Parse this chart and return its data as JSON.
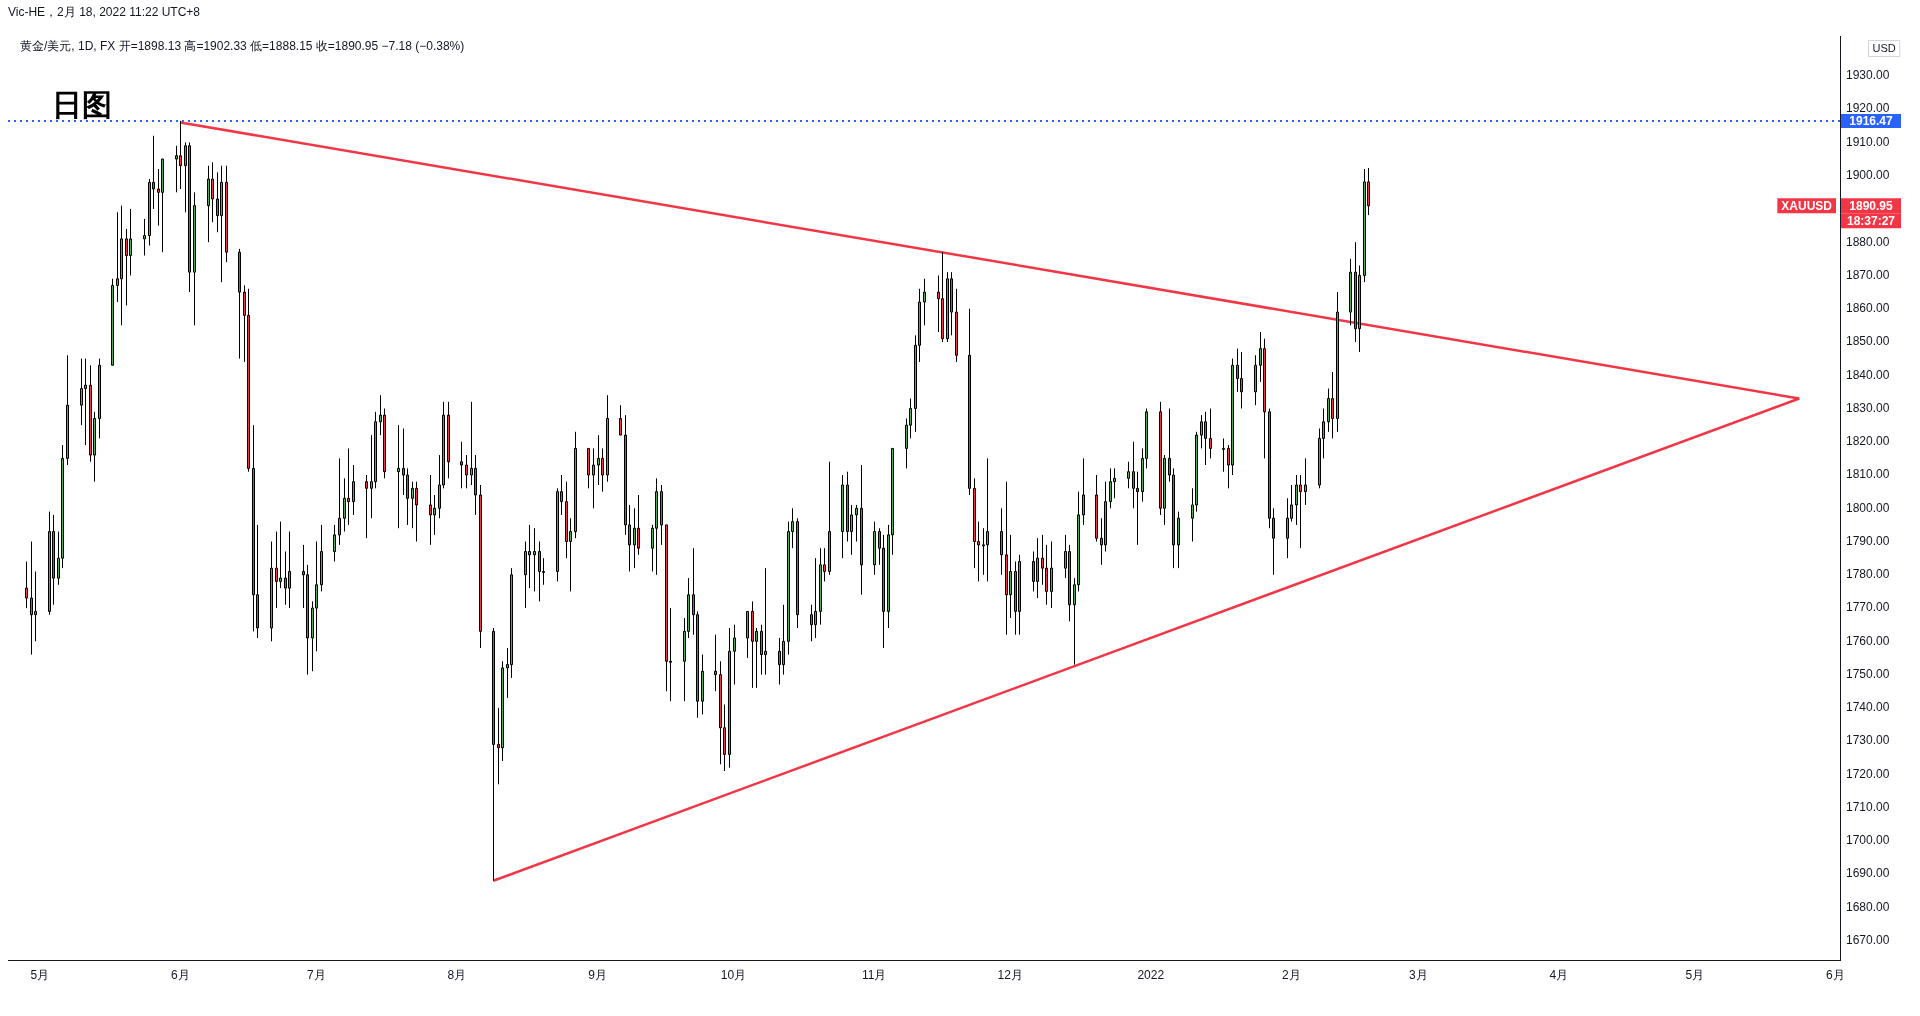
{
  "chart_data": {
    "type": "candlestick",
    "title": "黄金/美元, 1D, FX  开=1898.13  高=1902.33  低=1888.15  收=1890.95  −7.18 (−0.38%)",
    "subtitle": "Vic-HE，2月 18, 2022 11:22 UTC+8",
    "ylabel": "USD",
    "x": [
      "2021-04-28",
      "2021-04-29",
      "2021-04-30",
      "2021-05-03",
      "2021-05-04",
      "2021-05-05",
      "2021-05-06",
      "2021-05-07",
      "2021-05-10",
      "2021-05-11",
      "2021-05-12",
      "2021-05-13",
      "2021-05-14",
      "2021-05-17",
      "2021-05-18",
      "2021-05-19",
      "2021-05-20",
      "2021-05-21",
      "2021-05-24",
      "2021-05-25",
      "2021-05-26",
      "2021-05-27",
      "2021-05-28",
      "2021-05-31",
      "2021-06-01",
      "2021-06-02",
      "2021-06-03",
      "2021-06-04",
      "2021-06-07",
      "2021-06-08",
      "2021-06-09",
      "2021-06-10",
      "2021-06-11",
      "2021-06-14",
      "2021-06-15",
      "2021-06-16",
      "2021-06-17",
      "2021-06-18",
      "2021-06-21",
      "2021-06-22",
      "2021-06-23",
      "2021-06-24",
      "2021-06-25",
      "2021-06-28",
      "2021-06-29",
      "2021-06-30",
      "2021-07-01",
      "2021-07-02",
      "2021-07-05",
      "2021-07-06",
      "2021-07-07",
      "2021-07-08",
      "2021-07-09",
      "2021-07-12",
      "2021-07-13",
      "2021-07-14",
      "2021-07-15",
      "2021-07-16",
      "2021-07-19",
      "2021-07-20",
      "2021-07-21",
      "2021-07-22",
      "2021-07-23",
      "2021-07-26",
      "2021-07-27",
      "2021-07-28",
      "2021-07-29",
      "2021-07-30",
      "2021-08-02",
      "2021-08-03",
      "2021-08-04",
      "2021-08-05",
      "2021-08-06",
      "2021-08-09",
      "2021-08-10",
      "2021-08-11",
      "2021-08-12",
      "2021-08-13",
      "2021-08-16",
      "2021-08-17",
      "2021-08-18",
      "2021-08-19",
      "2021-08-20",
      "2021-08-23",
      "2021-08-24",
      "2021-08-25",
      "2021-08-26",
      "2021-08-27",
      "2021-08-30",
      "2021-08-31",
      "2021-09-01",
      "2021-09-02",
      "2021-09-03",
      "2021-09-06",
      "2021-09-07",
      "2021-09-08",
      "2021-09-09",
      "2021-09-10",
      "2021-09-13",
      "2021-09-14",
      "2021-09-15",
      "2021-09-16",
      "2021-09-17",
      "2021-09-20",
      "2021-09-21",
      "2021-09-22",
      "2021-09-23",
      "2021-09-24",
      "2021-09-27",
      "2021-09-28",
      "2021-09-29",
      "2021-09-30",
      "2021-10-01",
      "2021-10-04",
      "2021-10-05",
      "2021-10-06",
      "2021-10-07",
      "2021-10-08",
      "2021-10-11",
      "2021-10-12",
      "2021-10-13",
      "2021-10-14",
      "2021-10-15",
      "2021-10-18",
      "2021-10-19",
      "2021-10-20",
      "2021-10-21",
      "2021-10-22",
      "2021-10-25",
      "2021-10-26",
      "2021-10-27",
      "2021-10-28",
      "2021-10-29",
      "2021-11-01",
      "2021-11-02",
      "2021-11-03",
      "2021-11-04",
      "2021-11-05",
      "2021-11-08",
      "2021-11-09",
      "2021-11-10",
      "2021-11-11",
      "2021-11-12",
      "2021-11-15",
      "2021-11-16",
      "2021-11-17",
      "2021-11-18",
      "2021-11-19",
      "2021-11-22",
      "2021-11-23",
      "2021-11-24",
      "2021-11-25",
      "2021-11-26",
      "2021-11-29",
      "2021-11-30",
      "2021-12-01",
      "2021-12-02",
      "2021-12-03",
      "2021-12-06",
      "2021-12-07",
      "2021-12-08",
      "2021-12-09",
      "2021-12-10",
      "2021-12-13",
      "2021-12-14",
      "2021-12-15",
      "2021-12-16",
      "2021-12-17",
      "2021-12-20",
      "2021-12-21",
      "2021-12-22",
      "2021-12-23",
      "2021-12-24",
      "2021-12-27",
      "2021-12-28",
      "2021-12-29",
      "2021-12-30",
      "2021-12-31",
      "2022-01-03",
      "2022-01-04",
      "2022-01-05",
      "2022-01-06",
      "2022-01-07",
      "2022-01-10",
      "2022-01-11",
      "2022-01-12",
      "2022-01-13",
      "2022-01-14",
      "2022-01-17",
      "2022-01-18",
      "2022-01-19",
      "2022-01-20",
      "2022-01-21",
      "2022-01-24",
      "2022-01-25",
      "2022-01-26",
      "2022-01-27",
      "2022-01-28",
      "2022-01-31",
      "2022-02-01",
      "2022-02-02",
      "2022-02-03",
      "2022-02-04",
      "2022-02-07",
      "2022-02-08",
      "2022-02-09",
      "2022-02-10",
      "2022-02-11",
      "2022-02-14",
      "2022-02-15",
      "2022-02-16",
      "2022-02-17",
      "2022-02-18"
    ],
    "ohlc": [
      [
        1776,
        1784,
        1770,
        1773
      ],
      [
        1773,
        1790,
        1756,
        1768
      ],
      [
        1768,
        1781,
        1760,
        1769
      ],
      [
        1769,
        1799,
        1768,
        1793
      ],
      [
        1793,
        1798,
        1771,
        1779
      ],
      [
        1779,
        1793,
        1777,
        1785
      ],
      [
        1785,
        1819,
        1782,
        1815
      ],
      [
        1815,
        1846,
        1813,
        1831
      ],
      [
        1831,
        1845,
        1825,
        1836
      ],
      [
        1836,
        1845,
        1819,
        1837
      ],
      [
        1837,
        1843,
        1814,
        1816
      ],
      [
        1816,
        1829,
        1808,
        1827
      ],
      [
        1827,
        1845,
        1821,
        1843
      ],
      [
        1843,
        1869,
        1843,
        1867
      ],
      [
        1867,
        1889,
        1862,
        1869
      ],
      [
        1869,
        1891,
        1855,
        1881
      ],
      [
        1881,
        1884,
        1861,
        1876
      ],
      [
        1876,
        1890,
        1870,
        1881
      ],
      [
        1881,
        1887,
        1876,
        1882
      ],
      [
        1882,
        1899,
        1879,
        1898
      ],
      [
        1898,
        1912,
        1890,
        1896
      ],
      [
        1896,
        1902,
        1885,
        1895
      ],
      [
        1895,
        1905,
        1877,
        1905
      ],
      [
        1905,
        1909,
        1895,
        1906
      ],
      [
        1906,
        1916.47,
        1896,
        1903
      ],
      [
        1903,
        1910,
        1889,
        1909
      ],
      [
        1909,
        1910,
        1865,
        1871
      ],
      [
        1871,
        1895,
        1855,
        1891
      ],
      [
        1891,
        1903,
        1880,
        1899
      ],
      [
        1899,
        1904,
        1886,
        1893
      ],
      [
        1893,
        1901,
        1883,
        1888
      ],
      [
        1888,
        1903,
        1868,
        1898
      ],
      [
        1898,
        1903,
        1874,
        1877
      ],
      [
        1877,
        1878,
        1845,
        1865
      ],
      [
        1865,
        1867,
        1844,
        1858
      ],
      [
        1858,
        1866,
        1811,
        1812
      ],
      [
        1812,
        1825,
        1763,
        1774
      ],
      [
        1774,
        1795,
        1761,
        1764
      ],
      [
        1764,
        1790,
        1760,
        1782
      ],
      [
        1782,
        1793,
        1770,
        1778
      ],
      [
        1778,
        1796,
        1776,
        1779
      ],
      [
        1779,
        1787,
        1771,
        1776
      ],
      [
        1776,
        1793,
        1770,
        1781
      ],
      [
        1781,
        1789,
        1770,
        1780
      ],
      [
        1780,
        1783,
        1750,
        1761
      ],
      [
        1761,
        1772,
        1751,
        1770
      ],
      [
        1770,
        1790,
        1757,
        1777
      ],
      [
        1777,
        1795,
        1775,
        1787
      ],
      [
        1787,
        1795,
        1784,
        1792
      ],
      [
        1792,
        1815,
        1789,
        1797
      ],
      [
        1797,
        1809,
        1793,
        1803
      ],
      [
        1803,
        1818,
        1795,
        1802
      ],
      [
        1802,
        1813,
        1798,
        1808
      ],
      [
        1808,
        1810,
        1791,
        1806
      ],
      [
        1806,
        1822,
        1797,
        1808
      ],
      [
        1808,
        1829,
        1806,
        1826
      ],
      [
        1826,
        1834,
        1822,
        1828
      ],
      [
        1828,
        1830,
        1809,
        1811
      ],
      [
        1811,
        1825,
        1794,
        1812
      ],
      [
        1812,
        1824,
        1804,
        1810
      ],
      [
        1810,
        1812,
        1795,
        1803
      ],
      [
        1803,
        1808,
        1794,
        1806
      ],
      [
        1806,
        1808,
        1790,
        1801
      ],
      [
        1801,
        1810,
        1789,
        1798
      ],
      [
        1798,
        1804,
        1792,
        1800
      ],
      [
        1800,
        1816,
        1797,
        1807
      ],
      [
        1807,
        1832,
        1806,
        1828
      ],
      [
        1828,
        1832,
        1809,
        1814
      ],
      [
        1814,
        1820,
        1806,
        1813
      ],
      [
        1813,
        1816,
        1806,
        1810
      ],
      [
        1810,
        1832,
        1807,
        1812
      ],
      [
        1812,
        1816,
        1798,
        1804
      ],
      [
        1804,
        1807,
        1758,
        1763
      ],
      [
        1763,
        1764,
        1688,
        1729
      ],
      [
        1729,
        1740,
        1717,
        1728
      ],
      [
        1728,
        1754,
        1724,
        1752
      ],
      [
        1752,
        1758,
        1743,
        1753
      ],
      [
        1753,
        1782,
        1749,
        1780
      ],
      [
        1780,
        1790,
        1770,
        1787
      ],
      [
        1787,
        1795,
        1776,
        1786
      ],
      [
        1786,
        1794,
        1775,
        1787
      ],
      [
        1787,
        1790,
        1772,
        1781
      ],
      [
        1781,
        1785,
        1777,
        1781
      ],
      [
        1781,
        1806,
        1778,
        1805
      ],
      [
        1805,
        1810,
        1798,
        1802
      ],
      [
        1802,
        1808,
        1785,
        1790
      ],
      [
        1790,
        1797,
        1775,
        1793
      ],
      [
        1793,
        1823,
        1791,
        1818
      ],
      [
        1818,
        1818,
        1806,
        1810
      ],
      [
        1810,
        1818,
        1800,
        1813
      ],
      [
        1813,
        1822,
        1807,
        1815
      ],
      [
        1815,
        1818,
        1805,
        1810
      ],
      [
        1810,
        1834,
        1808,
        1827
      ],
      [
        1827,
        1831,
        1822,
        1822
      ],
      [
        1822,
        1828,
        1792,
        1795
      ],
      [
        1795,
        1801,
        1781,
        1789
      ],
      [
        1789,
        1800,
        1782,
        1794
      ],
      [
        1794,
        1804,
        1786,
        1788
      ],
      [
        1788,
        1795,
        1781,
        1794
      ],
      [
        1794,
        1809,
        1780,
        1805
      ],
      [
        1805,
        1807,
        1789,
        1795
      ],
      [
        1795,
        1795,
        1745,
        1754
      ],
      [
        1754,
        1770,
        1742,
        1754
      ],
      [
        1754,
        1767,
        1742,
        1763
      ],
      [
        1763,
        1779,
        1761,
        1774
      ],
      [
        1774,
        1788,
        1762,
        1768
      ],
      [
        1768,
        1769,
        1737,
        1742
      ],
      [
        1742,
        1756,
        1738,
        1751
      ],
      [
        1751,
        1762,
        1745,
        1750
      ],
      [
        1750,
        1754,
        1723,
        1734
      ],
      [
        1734,
        1741,
        1721,
        1726
      ],
      [
        1726,
        1764,
        1722,
        1757
      ],
      [
        1757,
        1765,
        1747,
        1761
      ],
      [
        1761,
        1769,
        1755,
        1769
      ],
      [
        1769,
        1772,
        1746,
        1760
      ],
      [
        1760,
        1764,
        1746,
        1763
      ],
      [
        1763,
        1765,
        1750,
        1756
      ],
      [
        1756,
        1782,
        1750,
        1757
      ],
      [
        1757,
        1761,
        1747,
        1753
      ],
      [
        1753,
        1771,
        1750,
        1760
      ],
      [
        1760,
        1796,
        1756,
        1793
      ],
      [
        1793,
        1800,
        1788,
        1796
      ],
      [
        1796,
        1797,
        1764,
        1768
      ],
      [
        1768,
        1771,
        1760,
        1765
      ],
      [
        1765,
        1785,
        1761,
        1769
      ],
      [
        1769,
        1788,
        1765,
        1783
      ],
      [
        1783,
        1788,
        1778,
        1781
      ],
      [
        1781,
        1814,
        1780,
        1793
      ],
      [
        1793,
        1810,
        1785,
        1807
      ],
      [
        1807,
        1811,
        1790,
        1793
      ],
      [
        1793,
        1801,
        1786,
        1798
      ],
      [
        1798,
        1801,
        1790,
        1800
      ],
      [
        1800,
        1813,
        1774,
        1783
      ],
      [
        1783,
        1796,
        1780,
        1793
      ],
      [
        1793,
        1794,
        1783,
        1788
      ],
      [
        1788,
        1792,
        1758,
        1769
      ],
      [
        1769,
        1795,
        1764,
        1792
      ],
      [
        1792,
        1818,
        1786,
        1818
      ],
      [
        1818,
        1827,
        1812,
        1825
      ],
      [
        1825,
        1833,
        1821,
        1830
      ],
      [
        1830,
        1852,
        1823,
        1849
      ],
      [
        1849,
        1866,
        1844,
        1862
      ],
      [
        1862,
        1869,
        1855,
        1865
      ],
      [
        1865,
        1870,
        1853,
        1863
      ],
      [
        1863,
        1877,
        1850,
        1851
      ],
      [
        1851,
        1871,
        1850,
        1869
      ],
      [
        1869,
        1871,
        1852,
        1859
      ],
      [
        1859,
        1866,
        1844,
        1846
      ],
      [
        1846,
        1860,
        1804,
        1806
      ],
      [
        1806,
        1809,
        1782,
        1790
      ],
      [
        1790,
        1796,
        1778,
        1789
      ],
      [
        1789,
        1794,
        1780,
        1789
      ],
      [
        1789,
        1815,
        1778,
        1793
      ],
      [
        1793,
        1800,
        1780,
        1786
      ],
      [
        1786,
        1808,
        1762,
        1774
      ],
      [
        1774,
        1792,
        1767,
        1781
      ],
      [
        1781,
        1784,
        1762,
        1769
      ],
      [
        1769,
        1786,
        1762,
        1784
      ],
      [
        1784,
        1787,
        1775,
        1778
      ],
      [
        1778,
        1791,
        1773,
        1785
      ],
      [
        1785,
        1792,
        1777,
        1782
      ],
      [
        1782,
        1789,
        1771,
        1775
      ],
      [
        1775,
        1790,
        1770,
        1782
      ],
      [
        1782,
        1792,
        1779,
        1787
      ],
      [
        1787,
        1789,
        1766,
        1771
      ],
      [
        1771,
        1779,
        1753,
        1777
      ],
      [
        1777,
        1805,
        1775,
        1798
      ],
      [
        1798,
        1815,
        1795,
        1804
      ],
      [
        1804,
        1810,
        1790,
        1791
      ],
      [
        1791,
        1797,
        1783,
        1789
      ],
      [
        1789,
        1808,
        1787,
        1802
      ],
      [
        1802,
        1812,
        1800,
        1808
      ],
      [
        1808,
        1812,
        1803,
        1809
      ],
      [
        1809,
        1814,
        1806,
        1811
      ],
      [
        1811,
        1820,
        1800,
        1806
      ],
      [
        1806,
        1811,
        1789,
        1805
      ],
      [
        1805,
        1818,
        1802,
        1815
      ],
      [
        1815,
        1830,
        1812,
        1829
      ],
      [
        1829,
        1832,
        1798,
        1800
      ],
      [
        1800,
        1816,
        1795,
        1815
      ],
      [
        1815,
        1830,
        1808,
        1810
      ],
      [
        1810,
        1812,
        1782,
        1789
      ],
      [
        1789,
        1799,
        1782,
        1797
      ],
      [
        1797,
        1806,
        1790,
        1801
      ],
      [
        1801,
        1823,
        1799,
        1822
      ],
      [
        1822,
        1828,
        1818,
        1826
      ],
      [
        1826,
        1829,
        1813,
        1821
      ],
      [
        1821,
        1830,
        1815,
        1818
      ],
      [
        1818,
        1821,
        1811,
        1818
      ],
      [
        1818,
        1819,
        1806,
        1813
      ],
      [
        1813,
        1845,
        1810,
        1843
      ],
      [
        1843,
        1848,
        1835,
        1839
      ],
      [
        1839,
        1847,
        1830,
        1835
      ],
      [
        1835,
        1846,
        1831,
        1843
      ],
      [
        1843,
        1853,
        1838,
        1848
      ],
      [
        1848,
        1851,
        1815,
        1829
      ],
      [
        1829,
        1830,
        1794,
        1797
      ],
      [
        1797,
        1800,
        1780,
        1791
      ],
      [
        1791,
        1803,
        1785,
        1797
      ],
      [
        1797,
        1807,
        1796,
        1801
      ],
      [
        1801,
        1810,
        1795,
        1807
      ],
      [
        1807,
        1810,
        1788,
        1805
      ],
      [
        1805,
        1815,
        1801,
        1807
      ],
      [
        1807,
        1824,
        1806,
        1821
      ],
      [
        1821,
        1830,
        1815,
        1826
      ],
      [
        1826,
        1836,
        1823,
        1833
      ],
      [
        1833,
        1841,
        1821,
        1827
      ],
      [
        1827,
        1865,
        1823,
        1859
      ],
      [
        1859,
        1875,
        1855,
        1871
      ],
      [
        1871,
        1880,
        1850,
        1854
      ],
      [
        1854,
        1873,
        1847,
        1870
      ],
      [
        1870,
        1902,
        1868,
        1898.13
      ],
      [
        1898.13,
        1902.33,
        1888.15,
        1890.95
      ]
    ],
    "colors": [
      "#f23645",
      "#f23645",
      "#4caf50",
      "#4caf50",
      "#f23645",
      "#4caf50",
      "#4caf50",
      "#4caf50",
      "#4caf50",
      "#4caf50",
      "#f23645",
      "#4caf50",
      "#4caf50",
      "#4caf50",
      "#4caf50",
      "#4caf50",
      "#f23645",
      "#4caf50",
      "#4caf50",
      "#4caf50",
      "#f23645",
      "#f23645",
      "#4caf50",
      "#4caf50",
      "#f23645",
      "#4caf50",
      "#f23645",
      "#4caf50",
      "#4caf50",
      "#f23645",
      "#f23645",
      "#4caf50",
      "#f23645",
      "#f23645",
      "#f23645",
      "#f23645",
      "#f23645",
      "#f23645",
      "#4caf50",
      "#f23645",
      "#4caf50",
      "#f23645",
      "#4caf50",
      "#f23645",
      "#f23645",
      "#4caf50",
      "#4caf50",
      "#4caf50",
      "#4caf50",
      "#4caf50",
      "#4caf50",
      "#f23645",
      "#4caf50",
      "#f23645",
      "#4caf50",
      "#4caf50",
      "#4caf50",
      "#f23645",
      "#4caf50",
      "#f23645",
      "#f23645",
      "#4caf50",
      "#f23645",
      "#f23645",
      "#4caf50",
      "#4caf50",
      "#4caf50",
      "#f23645",
      "#f23645",
      "#f23645",
      "#4caf50",
      "#f23645",
      "#f23645",
      "#f23645",
      "#f23645",
      "#4caf50",
      "#4caf50",
      "#4caf50",
      "#4caf50",
      "#f23645",
      "#4caf50",
      "#f23645",
      "#4caf50",
      "#4caf50",
      "#f23645",
      "#f23645",
      "#4caf50",
      "#4caf50",
      "#f23645",
      "#4caf50",
      "#4caf50",
      "#f23645",
      "#4caf50",
      "#f23645",
      "#f23645",
      "#f23645",
      "#4caf50",
      "#f23645",
      "#4caf50",
      "#4caf50",
      "#f23645",
      "#f23645",
      "#4caf50",
      "#4caf50",
      "#4caf50",
      "#f23645",
      "#f23645",
      "#4caf50",
      "#f23645",
      "#f23645",
      "#f23645",
      "#4caf50",
      "#4caf50",
      "#4caf50",
      "#f23645",
      "#4caf50",
      "#f23645",
      "#4caf50",
      "#f23645",
      "#4caf50",
      "#4caf50",
      "#4caf50",
      "#f23645",
      "#f23645",
      "#4caf50",
      "#4caf50",
      "#f23645",
      "#4caf50",
      "#4caf50",
      "#f23645",
      "#4caf50",
      "#4caf50",
      "#f23645",
      "#4caf50",
      "#f23645",
      "#f23645",
      "#4caf50",
      "#4caf50",
      "#4caf50",
      "#4caf50",
      "#4caf50",
      "#4caf50",
      "#4caf50",
      "#f23645",
      "#f23645",
      "#4caf50",
      "#f23645",
      "#f23645",
      "#f23645",
      "#f23645",
      "#f23645",
      "#4caf50",
      "#4caf50",
      "#f23645",
      "#f23645",
      "#4caf50",
      "#f23645",
      "#4caf50",
      "#f23645",
      "#4caf50",
      "#f23645",
      "#f23645",
      "#4caf50",
      "#4caf50",
      "#f23645",
      "#4caf50",
      "#4caf50",
      "#4caf50",
      "#f23645",
      "#f23645",
      "#4caf50",
      "#4caf50",
      "#4caf50",
      "#4caf50",
      "#f23645",
      "#f23645",
      "#4caf50",
      "#4caf50",
      "#f23645",
      "#4caf50",
      "#f23645",
      "#f23645",
      "#4caf50",
      "#4caf50",
      "#4caf50",
      "#4caf50",
      "#f23645",
      "#f23645",
      "#4caf50",
      "#f23645",
      "#4caf50",
      "#f23645",
      "#f23645",
      "#4caf50",
      "#4caf50",
      "#f23645",
      "#f23645",
      "#f23645",
      "#4caf50",
      "#4caf50",
      "#4caf50",
      "#f23645",
      "#4caf50",
      "#4caf50",
      "#4caf50",
      "#4caf50",
      "#f23645",
      "#4caf50",
      "#4caf50",
      "#f23645",
      "#4caf50",
      "#4caf50",
      "#f23645"
    ],
    "series": [
      {
        "type": "line",
        "color": "#f23645",
        "x": [
          "2021-06-01",
          "2022-05-24"
        ],
        "values": [
          1916,
          1833
        ]
      },
      {
        "type": "line",
        "color": "#f23645",
        "x": [
          "2021-08-09",
          "2022-05-24"
        ],
        "values": [
          1688,
          1833
        ]
      }
    ],
    "ref_lines": [
      {
        "axis": "y",
        "value": 1916.47,
        "label": "1916.47",
        "color": "#2962ff",
        "line_style": "dotted"
      }
    ],
    "annotations": [
      "日图",
      "XAUUSD",
      "1890.95",
      "18:37:27"
    ],
    "xlim": [
      "2021-04-24",
      "2022-06-02"
    ],
    "xticks": [
      {
        "value": "2021-05-01",
        "label": "5月"
      },
      {
        "value": "2021-06-01",
        "label": "6月"
      },
      {
        "value": "2021-07-01",
        "label": "7月"
      },
      {
        "value": "2021-08-01",
        "label": "8月"
      },
      {
        "value": "2021-09-01",
        "label": "9月"
      },
      {
        "value": "2021-10-01",
        "label": "10月"
      },
      {
        "value": "2021-11-01",
        "label": "11月"
      },
      {
        "value": "2021-12-01",
        "label": "12月"
      },
      {
        "value": "2022-01-01",
        "label": "2022"
      },
      {
        "value": "2022-02-01",
        "label": "2月"
      },
      {
        "value": "2022-03-01",
        "label": "3月"
      },
      {
        "value": "2022-04-01",
        "label": "4月"
      },
      {
        "value": "2022-05-01",
        "label": "5月"
      },
      {
        "value": "2022-06-01",
        "label": "6月"
      }
    ],
    "ylim": [
      1664,
      1942
    ],
    "yticks": [
      {
        "value": 1670,
        "label": "1670.00"
      },
      {
        "value": 1680,
        "label": "1680.00"
      },
      {
        "value": 1690,
        "label": "1690.00"
      },
      {
        "value": 1700,
        "label": "1700.00"
      },
      {
        "value": 1710,
        "label": "1710.00"
      },
      {
        "value": 1720,
        "label": "1720.00"
      },
      {
        "value": 1730,
        "label": "1730.00"
      },
      {
        "value": 1740,
        "label": "1740.00"
      },
      {
        "value": 1750,
        "label": "1750.00"
      },
      {
        "value": 1760,
        "label": "1760.00"
      },
      {
        "value": 1770,
        "label": "1770.00"
      },
      {
        "value": 1780,
        "label": "1780.00"
      },
      {
        "value": 1790,
        "label": "1790.00"
      },
      {
        "value": 1800,
        "label": "1800.00"
      },
      {
        "value": 1810,
        "label": "1810.00"
      },
      {
        "value": 1820,
        "label": "1820.00"
      },
      {
        "value": 1830,
        "label": "1830.00"
      },
      {
        "value": 1840,
        "label": "1840.00"
      },
      {
        "value": 1850,
        "label": "1850.00"
      },
      {
        "value": 1860,
        "label": "1860.00"
      },
      {
        "value": 1870,
        "label": "1870.00"
      },
      {
        "value": 1880,
        "label": "1880.00"
      },
      {
        "value": 1900,
        "label": "1900.00"
      },
      {
        "value": 1910,
        "label": "1910.00"
      },
      {
        "value": 1920,
        "label": "1920.00"
      },
      {
        "value": 1930,
        "label": "1930.00"
      }
    ]
  }
}
